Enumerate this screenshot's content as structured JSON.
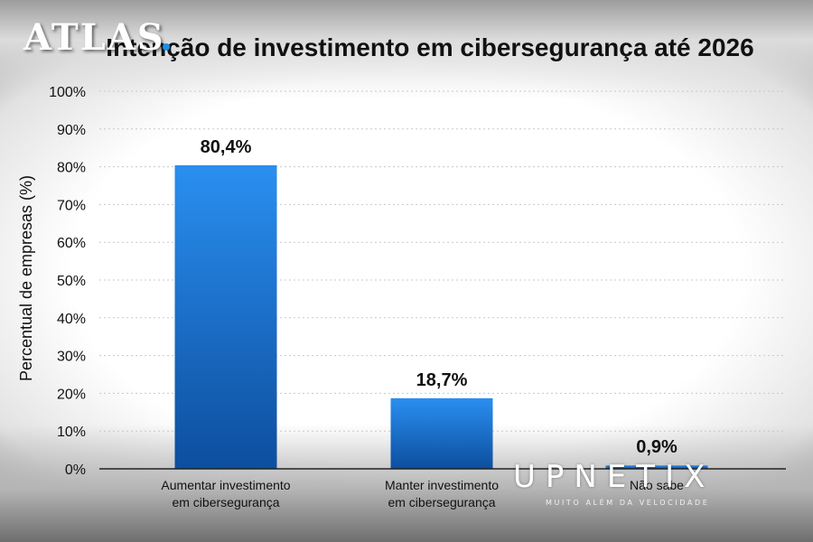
{
  "chart_data": {
    "type": "bar",
    "title": "Intenção de investimento em cibersegurança até 2026",
    "ylabel": "Percentual de empresas (%)",
    "xlabel": "",
    "categories": [
      [
        "Aumentar investimento",
        "em cibersegurança"
      ],
      [
        "Manter investimento",
        "em cibersegurança"
      ],
      [
        "Não sabe"
      ]
    ],
    "values": [
      80.4,
      18.7,
      0.9
    ],
    "value_labels": [
      "80,4%",
      "18,7%",
      "0,9%"
    ],
    "ylim": [
      0,
      100
    ],
    "yticks": [
      "0%",
      "10%",
      "20%",
      "30%",
      "40%",
      "50%",
      "60%",
      "70%",
      "80%",
      "90%",
      "100%"
    ],
    "grid": "horizontal dotted",
    "colors": {
      "bar_top": "#2a8ff0",
      "bar_bottom": "#0d4e9e",
      "grid": "#c8c8c8",
      "axis": "#222222"
    }
  },
  "watermarks": {
    "atlas": "ATLAS",
    "upnetix": "UPNETIX",
    "upnetix_tagline": "MUITO ALÉM DA VELOCIDADE"
  }
}
